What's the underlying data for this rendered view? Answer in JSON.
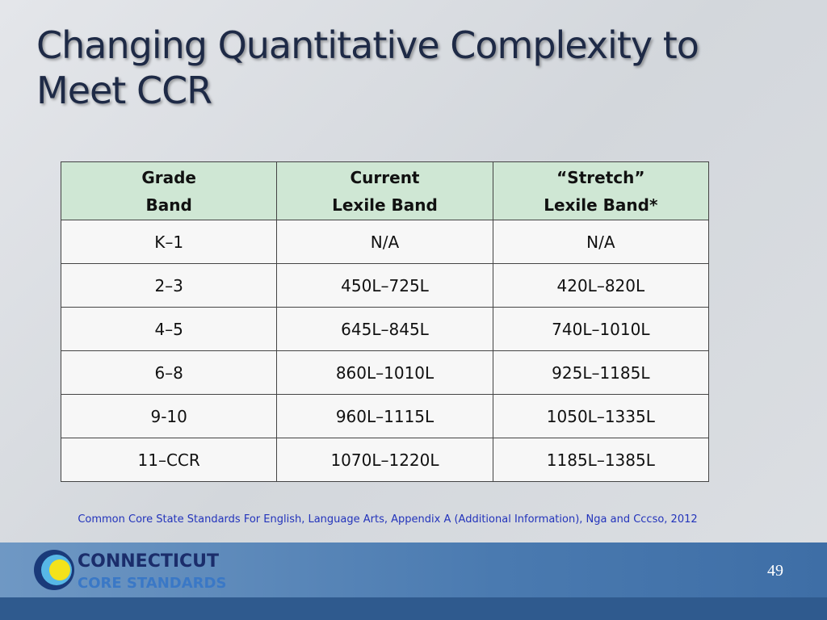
{
  "title": "Changing Quantitative Complexity to Meet CCR",
  "table": {
    "headers": [
      [
        "Grade",
        "Band"
      ],
      [
        "Current",
        "Lexile Band"
      ],
      [
        "“Stretch”",
        "Lexile Band*"
      ]
    ],
    "rows": [
      [
        "K–1",
        "N/A",
        "N/A"
      ],
      [
        "2–3",
        "450L–725L",
        "420L–820L"
      ],
      [
        "4–5",
        "645L–845L",
        "740L–1010L"
      ],
      [
        "6–8",
        "860L–1010L",
        "925L–1185L"
      ],
      [
        "9-10",
        "960L–1115L",
        "1050L–1335L"
      ],
      [
        "11–CCR",
        "1070L–1220L",
        "1185L–1385L"
      ]
    ]
  },
  "citation": "Common Core State Standards For English, Language Arts, Appendix A (Additional Information), Nga and Cccso, 2012",
  "footer": {
    "logo_line1": "CONNECTICUT",
    "logo_line2": "CORE STANDARDS",
    "page_number": "49"
  }
}
